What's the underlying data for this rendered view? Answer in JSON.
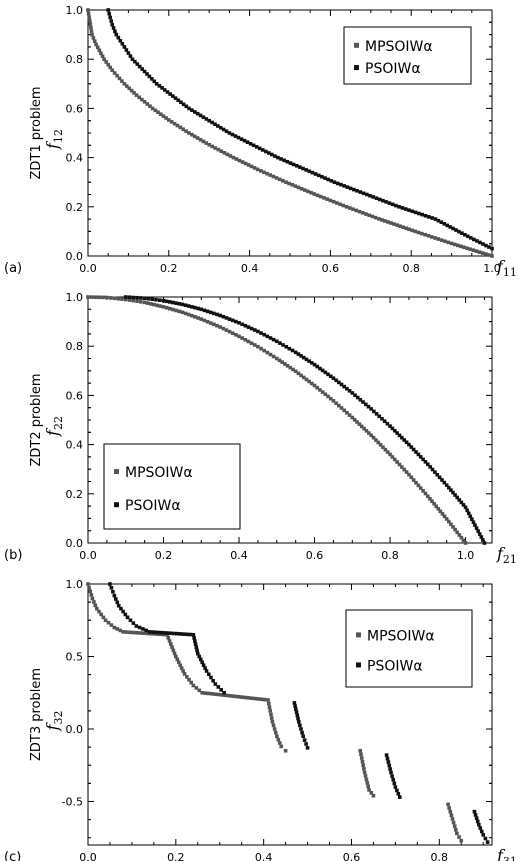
{
  "colors": {
    "mpso": "#555555",
    "pso": "#111111",
    "frame": "#000000"
  },
  "chart_data": [
    {
      "type": "scatter",
      "panel_tag": "(a)",
      "ylabel": "ZDT1 problem",
      "yname": "f",
      "yname_sub": "12",
      "xname": "f",
      "xname_sub": "11",
      "xlim": [
        0,
        1
      ],
      "ylim": [
        0,
        1
      ],
      "xticks": [
        "0.0",
        "0.2",
        "0.4",
        "0.6",
        "0.8",
        "1.0"
      ],
      "xtick_values": [
        0,
        0.2,
        0.4,
        0.6,
        0.8,
        1.0
      ],
      "yticks": [
        "0.0",
        "0.2",
        "0.4",
        "0.6",
        "0.8",
        "1.0"
      ],
      "ytick_values": [
        0,
        0.2,
        0.4,
        0.6,
        0.8,
        1.0
      ],
      "legend_position": "top-right",
      "legend": [
        "MPSOIWα",
        "PSOIWα"
      ],
      "series": [
        {
          "name": "MPSOIWα",
          "x": [
            0.0,
            0.01,
            0.02,
            0.04,
            0.06,
            0.09,
            0.12,
            0.16,
            0.2,
            0.25,
            0.3,
            0.36,
            0.42,
            0.49,
            0.56,
            0.64,
            0.72,
            0.81,
            0.9,
            1.0
          ],
          "y": [
            1.0,
            0.9,
            0.86,
            0.8,
            0.755,
            0.7,
            0.654,
            0.6,
            0.553,
            0.5,
            0.452,
            0.4,
            0.352,
            0.3,
            0.252,
            0.2,
            0.151,
            0.1,
            0.051,
            0.0
          ]
        },
        {
          "name": "PSOIWα",
          "x": [
            0.05,
            0.06,
            0.07,
            0.09,
            0.11,
            0.14,
            0.17,
            0.21,
            0.25,
            0.3,
            0.35,
            0.41,
            0.47,
            0.54,
            0.61,
            0.69,
            0.77,
            0.86,
            0.94,
            1.0
          ],
          "y": [
            1.0,
            0.94,
            0.9,
            0.85,
            0.8,
            0.75,
            0.7,
            0.65,
            0.6,
            0.55,
            0.5,
            0.45,
            0.4,
            0.35,
            0.3,
            0.25,
            0.2,
            0.15,
            0.08,
            0.03
          ]
        }
      ]
    },
    {
      "type": "scatter",
      "panel_tag": "(b)",
      "ylabel": "ZDT2 problem",
      "yname": "f",
      "yname_sub": "22",
      "xname": "f",
      "xname_sub": "21",
      "xlim": [
        0,
        1.07
      ],
      "ylim": [
        0,
        1
      ],
      "xticks": [
        "0.0",
        "0.2",
        "0.4",
        "0.6",
        "0.8",
        "1.0"
      ],
      "xtick_values": [
        0,
        0.2,
        0.4,
        0.6,
        0.8,
        1.0
      ],
      "yticks": [
        "0.0",
        "0.2",
        "0.4",
        "0.6",
        "0.8",
        "1.0"
      ],
      "ytick_values": [
        0,
        0.2,
        0.4,
        0.6,
        0.8,
        1.0
      ],
      "legend_position": "bottom-left",
      "legend": [
        "MPSOIWα",
        "PSOIWα"
      ],
      "series": [
        {
          "name": "MPSOIWα",
          "x": [
            0.0,
            0.05,
            0.1,
            0.15,
            0.2,
            0.25,
            0.3,
            0.35,
            0.4,
            0.45,
            0.5,
            0.55,
            0.6,
            0.65,
            0.7,
            0.75,
            0.8,
            0.85,
            0.9,
            0.95,
            1.0
          ],
          "y": [
            1.0,
            0.998,
            0.99,
            0.978,
            0.96,
            0.938,
            0.91,
            0.878,
            0.84,
            0.798,
            0.75,
            0.698,
            0.64,
            0.578,
            0.51,
            0.438,
            0.36,
            0.278,
            0.19,
            0.098,
            0.0
          ]
        },
        {
          "name": "PSOIWα",
          "x": [
            0.1,
            0.15,
            0.2,
            0.25,
            0.3,
            0.35,
            0.4,
            0.45,
            0.5,
            0.55,
            0.6,
            0.65,
            0.7,
            0.75,
            0.8,
            0.85,
            0.9,
            0.95,
            1.0,
            1.05
          ],
          "y": [
            1.0,
            0.995,
            0.985,
            0.97,
            0.95,
            0.925,
            0.895,
            0.86,
            0.82,
            0.775,
            0.725,
            0.67,
            0.61,
            0.545,
            0.475,
            0.4,
            0.32,
            0.235,
            0.145,
            0.0
          ]
        }
      ]
    },
    {
      "type": "scatter",
      "panel_tag": "(c)",
      "ylabel": "ZDT3 problem",
      "yname": "f",
      "yname_sub": "32",
      "xname": "f",
      "xname_sub": "31",
      "xlim": [
        0,
        0.92
      ],
      "ylim": [
        -0.8,
        1
      ],
      "xticks": [
        "0.0",
        "0.2",
        "0.4",
        "0.6",
        "0.8"
      ],
      "xtick_values": [
        0,
        0.2,
        0.4,
        0.6,
        0.8
      ],
      "yticks": [
        "-0.5",
        "0.0",
        "0.5",
        "1.0"
      ],
      "ytick_values": [
        -0.5,
        0,
        0.5,
        1.0
      ],
      "legend_position": "top-right",
      "legend": [
        "MPSOIWα",
        "PSOIWα"
      ],
      "series": [
        {
          "name": "MPSOIWα",
          "x": [
            0.0,
            0.01,
            0.02,
            0.04,
            0.06,
            0.08,
            0.18,
            0.2,
            0.22,
            0.24,
            0.26,
            0.41,
            0.42,
            0.43,
            0.44,
            0.45,
            0.62,
            0.63,
            0.64,
            0.65,
            0.82,
            0.83,
            0.84,
            0.85
          ],
          "y": [
            1.0,
            0.9,
            0.83,
            0.75,
            0.7,
            0.67,
            0.65,
            0.5,
            0.38,
            0.3,
            0.25,
            0.2,
            0.05,
            -0.05,
            -0.12,
            -0.15,
            -0.15,
            -0.3,
            -0.42,
            -0.46,
            -0.52,
            -0.62,
            -0.72,
            -0.77
          ]
        },
        {
          "name": "PSOIWα",
          "x": [
            0.05,
            0.06,
            0.07,
            0.09,
            0.11,
            0.14,
            0.24,
            0.25,
            0.27,
            0.29,
            0.31,
            0.47,
            0.48,
            0.49,
            0.5,
            0.68,
            0.69,
            0.7,
            0.71,
            0.88,
            0.89,
            0.9,
            0.91
          ],
          "y": [
            1.0,
            0.92,
            0.85,
            0.77,
            0.71,
            0.67,
            0.65,
            0.52,
            0.4,
            0.31,
            0.25,
            0.18,
            0.05,
            -0.05,
            -0.13,
            -0.18,
            -0.3,
            -0.4,
            -0.47,
            -0.57,
            -0.66,
            -0.73,
            -0.78
          ]
        }
      ]
    }
  ]
}
